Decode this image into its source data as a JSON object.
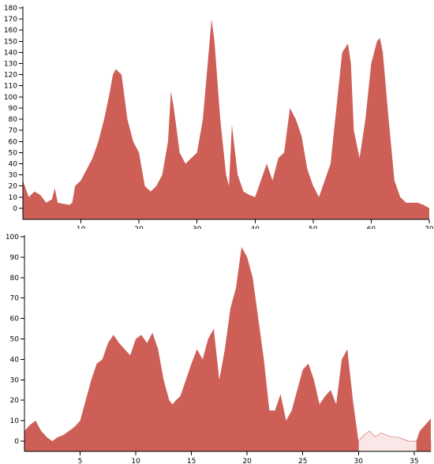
{
  "colors": {
    "area": "#cd5f57",
    "faded": "#f9e8e7",
    "faded_stroke": "#cd5f57",
    "axis": "#000000"
  },
  "chart_data": [
    {
      "type": "area",
      "title": "",
      "xlabel": "",
      "ylabel": "",
      "xlim": [
        0,
        70
      ],
      "ylim": [
        -10,
        180
      ],
      "xticks": [
        10,
        20,
        30,
        40,
        50,
        60,
        70
      ],
      "yticks": [
        0,
        10,
        20,
        30,
        40,
        50,
        60,
        70,
        80,
        90,
        100,
        110,
        120,
        130,
        140,
        150,
        160,
        170,
        180
      ],
      "grid": false,
      "series": [
        {
          "x": [
            0,
            1,
            2,
            3,
            4,
            5,
            5.5,
            6,
            7,
            8,
            8.5,
            9,
            10,
            11,
            12,
            13,
            14,
            15,
            15.5,
            16,
            17,
            18,
            19,
            20,
            21,
            22,
            23,
            24,
            25,
            25.5,
            26,
            27,
            28,
            29,
            30,
            31,
            32,
            32.5,
            33,
            34,
            35,
            35.5,
            36,
            37,
            38,
            39,
            40,
            41,
            42,
            43,
            44,
            45,
            46,
            47,
            48,
            49,
            50,
            51,
            52,
            53,
            54,
            55,
            56,
            56.5,
            57,
            58,
            59,
            60,
            61,
            61.5,
            62,
            63,
            64,
            65,
            66,
            67,
            68,
            69,
            70
          ],
          "y": [
            25,
            10,
            15,
            12,
            5,
            8,
            18,
            5,
            4,
            3,
            5,
            20,
            25,
            35,
            45,
            60,
            80,
            105,
            120,
            125,
            120,
            80,
            60,
            50,
            20,
            15,
            20,
            30,
            60,
            105,
            90,
            50,
            40,
            45,
            50,
            80,
            140,
            170,
            150,
            80,
            30,
            20,
            75,
            30,
            15,
            12,
            10,
            25,
            40,
            25,
            45,
            50,
            90,
            80,
            65,
            35,
            20,
            10,
            25,
            40,
            90,
            140,
            148,
            130,
            70,
            45,
            80,
            130,
            150,
            153,
            140,
            80,
            25,
            10,
            5,
            5,
            5,
            3,
            0
          ]
        }
      ]
    },
    {
      "type": "area",
      "title": "",
      "xlabel": "",
      "ylabel": "",
      "xlim": [
        0,
        36.5
      ],
      "ylim": [
        -5,
        100
      ],
      "xticks": [
        5,
        10,
        15,
        20,
        25,
        30,
        35
      ],
      "yticks": [
        0,
        10,
        20,
        30,
        40,
        50,
        60,
        70,
        80,
        90,
        100
      ],
      "grid": false,
      "series": [
        {
          "x": [
            0,
            0.5,
            1,
            1.5,
            2,
            2.5,
            3,
            3.5,
            4,
            4.5,
            5,
            5.5,
            6,
            6.5,
            7,
            7.5,
            8,
            8.5,
            9,
            9.5,
            10,
            10.5,
            11,
            11.5,
            12,
            12.5,
            13,
            13.3,
            13.6,
            14,
            14.5,
            15,
            15.5,
            16,
            16.5,
            17,
            17.5,
            18,
            18.5,
            19,
            19.5,
            20,
            20.5,
            21,
            21.5,
            22,
            22.5,
            23,
            23.5,
            24,
            24.5,
            25,
            25.5,
            26,
            26.5,
            27,
            27.5,
            28,
            28.5,
            29,
            29.5,
            30
          ],
          "y": [
            5,
            8,
            10,
            5,
            2,
            0,
            2,
            3,
            5,
            7,
            10,
            20,
            30,
            38,
            40,
            48,
            52,
            48,
            45,
            42,
            50,
            52,
            48,
            53,
            45,
            30,
            20,
            18,
            20,
            22,
            30,
            38,
            45,
            40,
            50,
            55,
            30,
            45,
            65,
            75,
            95,
            90,
            80,
            60,
            40,
            15,
            15,
            23,
            10,
            15,
            25,
            35,
            38,
            30,
            18,
            22,
            25,
            18,
            40,
            45,
            20,
            0
          ]
        },
        {
          "name": "",
          "faded": true,
          "x": [
            30,
            30.5,
            31,
            31.5,
            32,
            32.5,
            33,
            33.5,
            34,
            34.5,
            35,
            35.2,
            35.5,
            36,
            36.5
          ],
          "y": [
            0,
            3,
            5,
            2,
            4,
            3,
            2,
            2,
            1,
            0,
            0,
            0,
            0,
            0,
            0
          ]
        },
        {
          "x": [
            35.2,
            35.5,
            36,
            36.5
          ],
          "y": [
            0,
            5,
            8,
            11
          ]
        }
      ]
    }
  ]
}
